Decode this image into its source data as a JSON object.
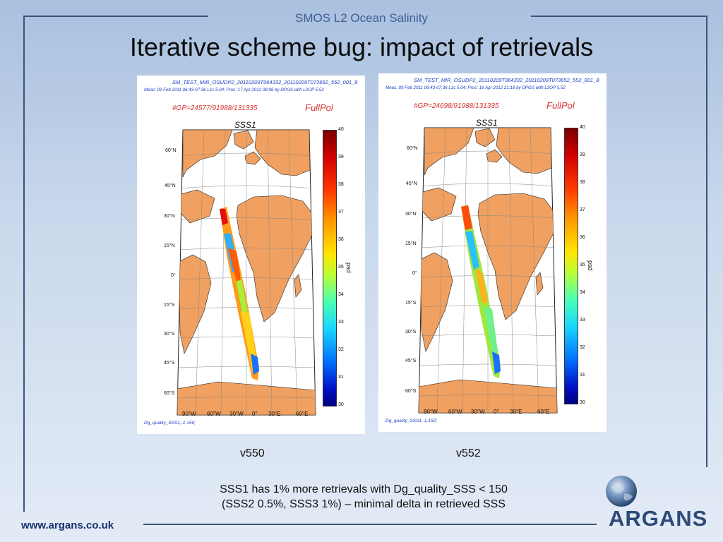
{
  "header": {
    "subtitle": "SMOS L2 Ocean Salinity",
    "title": "Iterative scheme bug: impact of retrievals"
  },
  "panels": [
    {
      "file_name": "SM_TEST_MIR_OSUDP2_20110209T064332_20110209T073652_552_001_8",
      "meas_line": "Meas: 09 Feb 2011 06:43-07:36 L1c 5.04; Proc: 17 Apr 2012 08:06 by DPGS with L2OP 5.52",
      "gp_count": "#GP=24577/91988/131335",
      "mode": "FullPol",
      "map_title": "SSS1",
      "filter": "Dg_quality_SSS1,-1,150;",
      "version_label": "v550"
    },
    {
      "file_name": "SM_TEST_MIR_OSUDP2_20110209T064332_20110209T073652_552_001_8",
      "meas_line": "Meas: 09 Feb 2011 06:43-07:36 L1c 5.04; Proc: 16 Apr 2012 21:18 by DPGS with L2OP 5.52",
      "gp_count": "#GP=24698/91988/131335",
      "mode": "FullPol",
      "map_title": "SSS1",
      "filter": "Dg_quality_SSS1,-1,150;",
      "version_label": "v552"
    }
  ],
  "map": {
    "lat_labels": [
      "60°N",
      "45°N",
      "30°N",
      "15°N",
      "0°",
      "15°S",
      "30°S",
      "45°S",
      "60°S"
    ],
    "lon_labels": [
      "90°W",
      "60°W",
      "30°W",
      "0°",
      "30°E",
      "60°E"
    ],
    "colorbar_ticks": [
      "40",
      "39",
      "38",
      "37",
      "36",
      "35",
      "34",
      "33",
      "32",
      "31",
      "30"
    ],
    "colorbar_label": "psd",
    "land_color": "#f0a060",
    "ocean_color": "#ffffff"
  },
  "conclusion": {
    "line1": "SSS1 has 1% more retrievals with Dg_quality_SSS < 150",
    "line2": "(SSS2 0.5%, SSS3 1%) – minimal delta in retrieved SSS"
  },
  "footer": {
    "website": "www.argans.co.uk",
    "logo_text": "ARGANS"
  }
}
